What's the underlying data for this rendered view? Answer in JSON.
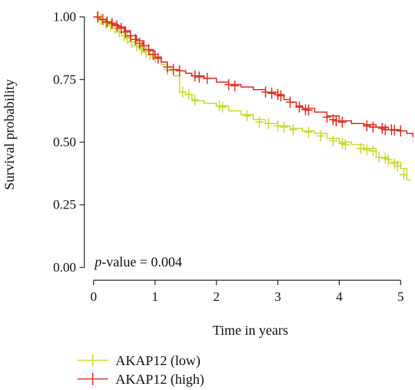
{
  "chart_data": {
    "type": "line",
    "subtype": "kaplan-meier",
    "xlabel": "Time in years",
    "ylabel": "Survival probability",
    "xlim": [
      -0.15,
      5.2
    ],
    "ylim": [
      -0.04,
      1.04
    ],
    "xticks": [
      0,
      1,
      2,
      3,
      4,
      5
    ],
    "xtick_labels": [
      "0",
      "1",
      "2",
      "3",
      "4",
      "5"
    ],
    "yticks": [
      0.0,
      0.25,
      0.5,
      0.75,
      1.0
    ],
    "ytick_labels": [
      "0.00",
      "0.25",
      "0.50",
      "0.75",
      "1.00"
    ],
    "grid": false,
    "legend_position": "bottom-left",
    "annotation": {
      "italic_part": "p",
      "rest": "-value = 0.004"
    },
    "series": [
      {
        "name": "AKAP12 (low)",
        "color": "#c8d82a",
        "steps": [
          [
            0,
            1.0
          ],
          [
            0.1,
            0.985
          ],
          [
            0.2,
            0.97
          ],
          [
            0.3,
            0.955
          ],
          [
            0.4,
            0.94
          ],
          [
            0.5,
            0.92
          ],
          [
            0.6,
            0.9
          ],
          [
            0.7,
            0.88
          ],
          [
            0.8,
            0.865
          ],
          [
            0.9,
            0.85
          ],
          [
            1.0,
            0.835
          ],
          [
            1.1,
            0.81
          ],
          [
            1.2,
            0.785
          ],
          [
            1.3,
            0.765
          ],
          [
            1.4,
            0.7
          ],
          [
            1.5,
            0.69
          ],
          [
            1.6,
            0.665
          ],
          [
            1.8,
            0.655
          ],
          [
            2.0,
            0.645
          ],
          [
            2.2,
            0.625
          ],
          [
            2.4,
            0.61
          ],
          [
            2.6,
            0.59
          ],
          [
            2.8,
            0.575
          ],
          [
            3.0,
            0.565
          ],
          [
            3.2,
            0.555
          ],
          [
            3.4,
            0.545
          ],
          [
            3.6,
            0.535
          ],
          [
            3.8,
            0.515
          ],
          [
            4.0,
            0.5
          ],
          [
            4.2,
            0.49
          ],
          [
            4.4,
            0.475
          ],
          [
            4.6,
            0.44
          ],
          [
            4.8,
            0.42
          ],
          [
            5.0,
            0.395
          ],
          [
            5.1,
            0.35
          ],
          [
            5.15,
            0.345
          ]
        ],
        "censors": [
          [
            0.06,
            1.0
          ],
          [
            0.12,
            0.99
          ],
          [
            0.2,
            0.975
          ],
          [
            0.28,
            0.965
          ],
          [
            0.35,
            0.955
          ],
          [
            0.42,
            0.94
          ],
          [
            0.5,
            0.925
          ],
          [
            0.55,
            0.915
          ],
          [
            0.62,
            0.9
          ],
          [
            0.7,
            0.885
          ],
          [
            0.78,
            0.87
          ],
          [
            0.85,
            0.86
          ],
          [
            0.92,
            0.85
          ],
          [
            1.0,
            0.84
          ],
          [
            1.2,
            0.79
          ],
          [
            1.45,
            0.7
          ],
          [
            1.55,
            0.69
          ],
          [
            1.65,
            0.67
          ],
          [
            2.05,
            0.645
          ],
          [
            2.1,
            0.64
          ],
          [
            2.5,
            0.605
          ],
          [
            2.7,
            0.58
          ],
          [
            2.85,
            0.575
          ],
          [
            3.0,
            0.565
          ],
          [
            3.1,
            0.56
          ],
          [
            3.25,
            0.55
          ],
          [
            3.5,
            0.54
          ],
          [
            3.7,
            0.525
          ],
          [
            3.9,
            0.505
          ],
          [
            4.05,
            0.495
          ],
          [
            4.1,
            0.49
          ],
          [
            4.35,
            0.475
          ],
          [
            4.45,
            0.47
          ],
          [
            4.55,
            0.465
          ],
          [
            4.65,
            0.44
          ],
          [
            4.75,
            0.435
          ],
          [
            4.8,
            0.43
          ],
          [
            4.9,
            0.415
          ],
          [
            4.95,
            0.405
          ],
          [
            5.05,
            0.37
          ]
        ]
      },
      {
        "name": "AKAP12 (high)",
        "color": "#dd2a1b",
        "steps": [
          [
            0,
            1.0
          ],
          [
            0.1,
            0.99
          ],
          [
            0.2,
            0.98
          ],
          [
            0.3,
            0.97
          ],
          [
            0.4,
            0.96
          ],
          [
            0.5,
            0.945
          ],
          [
            0.6,
            0.925
          ],
          [
            0.7,
            0.905
          ],
          [
            0.8,
            0.885
          ],
          [
            0.9,
            0.865
          ],
          [
            1.0,
            0.84
          ],
          [
            1.1,
            0.82
          ],
          [
            1.2,
            0.8
          ],
          [
            1.3,
            0.79
          ],
          [
            1.4,
            0.785
          ],
          [
            1.5,
            0.775
          ],
          [
            1.6,
            0.765
          ],
          [
            1.8,
            0.755
          ],
          [
            2.0,
            0.74
          ],
          [
            2.2,
            0.73
          ],
          [
            2.4,
            0.72
          ],
          [
            2.6,
            0.71
          ],
          [
            2.8,
            0.7
          ],
          [
            3.0,
            0.69
          ],
          [
            3.1,
            0.67
          ],
          [
            3.2,
            0.66
          ],
          [
            3.3,
            0.645
          ],
          [
            3.4,
            0.635
          ],
          [
            3.6,
            0.62
          ],
          [
            3.8,
            0.605
          ],
          [
            4.0,
            0.585
          ],
          [
            4.2,
            0.575
          ],
          [
            4.4,
            0.57
          ],
          [
            4.6,
            0.56
          ],
          [
            4.8,
            0.55
          ],
          [
            5.0,
            0.545
          ],
          [
            5.1,
            0.535
          ],
          [
            5.2,
            0.52
          ]
        ],
        "censors": [
          [
            0.07,
            1.0
          ],
          [
            0.15,
            0.99
          ],
          [
            0.22,
            0.98
          ],
          [
            0.3,
            0.975
          ],
          [
            0.38,
            0.965
          ],
          [
            0.45,
            0.955
          ],
          [
            0.52,
            0.94
          ],
          [
            0.6,
            0.925
          ],
          [
            0.68,
            0.91
          ],
          [
            0.75,
            0.895
          ],
          [
            0.82,
            0.885
          ],
          [
            0.9,
            0.87
          ],
          [
            0.97,
            0.85
          ],
          [
            1.05,
            0.835
          ],
          [
            1.2,
            0.8
          ],
          [
            1.3,
            0.79
          ],
          [
            1.4,
            0.785
          ],
          [
            1.65,
            0.765
          ],
          [
            1.72,
            0.76
          ],
          [
            1.85,
            0.755
          ],
          [
            2.2,
            0.73
          ],
          [
            2.3,
            0.725
          ],
          [
            2.8,
            0.7
          ],
          [
            2.9,
            0.695
          ],
          [
            3.0,
            0.69
          ],
          [
            3.05,
            0.685
          ],
          [
            3.2,
            0.66
          ],
          [
            3.35,
            0.64
          ],
          [
            3.45,
            0.63
          ],
          [
            3.5,
            0.628
          ],
          [
            3.8,
            0.6
          ],
          [
            3.9,
            0.59
          ],
          [
            3.95,
            0.585
          ],
          [
            4.05,
            0.58
          ],
          [
            4.45,
            0.565
          ],
          [
            4.55,
            0.56
          ],
          [
            4.7,
            0.555
          ],
          [
            4.75,
            0.55
          ],
          [
            4.85,
            0.55
          ],
          [
            4.9,
            0.548
          ],
          [
            5.0,
            0.545
          ]
        ]
      }
    ]
  }
}
